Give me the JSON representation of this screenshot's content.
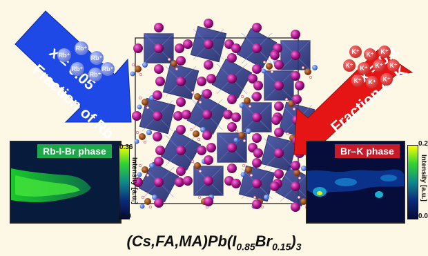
{
  "left_arrow": {
    "line1": "x = 0.05",
    "line2": "Fraction of Rb",
    "color": "#1f49e6"
  },
  "right_arrow": {
    "line1": "x = 0.1",
    "line2": "Fraction of K",
    "color": "#e61515"
  },
  "rb_ions": {
    "label": "Rb⁺",
    "count": 6,
    "color": "#5466d2"
  },
  "k_ions": {
    "label": "K⁺",
    "count": 10,
    "color": "#c61010"
  },
  "left_panel": {
    "title": "Rb-I-Br phase",
    "title_bg": "#1da94a",
    "colorbar_max": "0.36",
    "colorbar_min": "0.0",
    "colorbar_label": "Intensity [a.u.]"
  },
  "right_panel": {
    "title": "Br–K phase",
    "title_bg": "#c81b2a",
    "colorbar_max": "0.2",
    "colorbar_min": "0.0",
    "colorbar_label": "Intensity [a.u.]"
  },
  "formula": {
    "prefix": "(Cs,FA,MA)Pb(I",
    "sub1": "0.85",
    "mid": "Br",
    "sub2": "0.15",
    "close": ")",
    "sub3": "3"
  },
  "colors": {
    "background": "#fdf7e6",
    "octahedra": "#2d3a8c",
    "iodide": "#b0158f",
    "carbon": "#8a3b0f",
    "nitrogen": "#3a6fe0"
  }
}
